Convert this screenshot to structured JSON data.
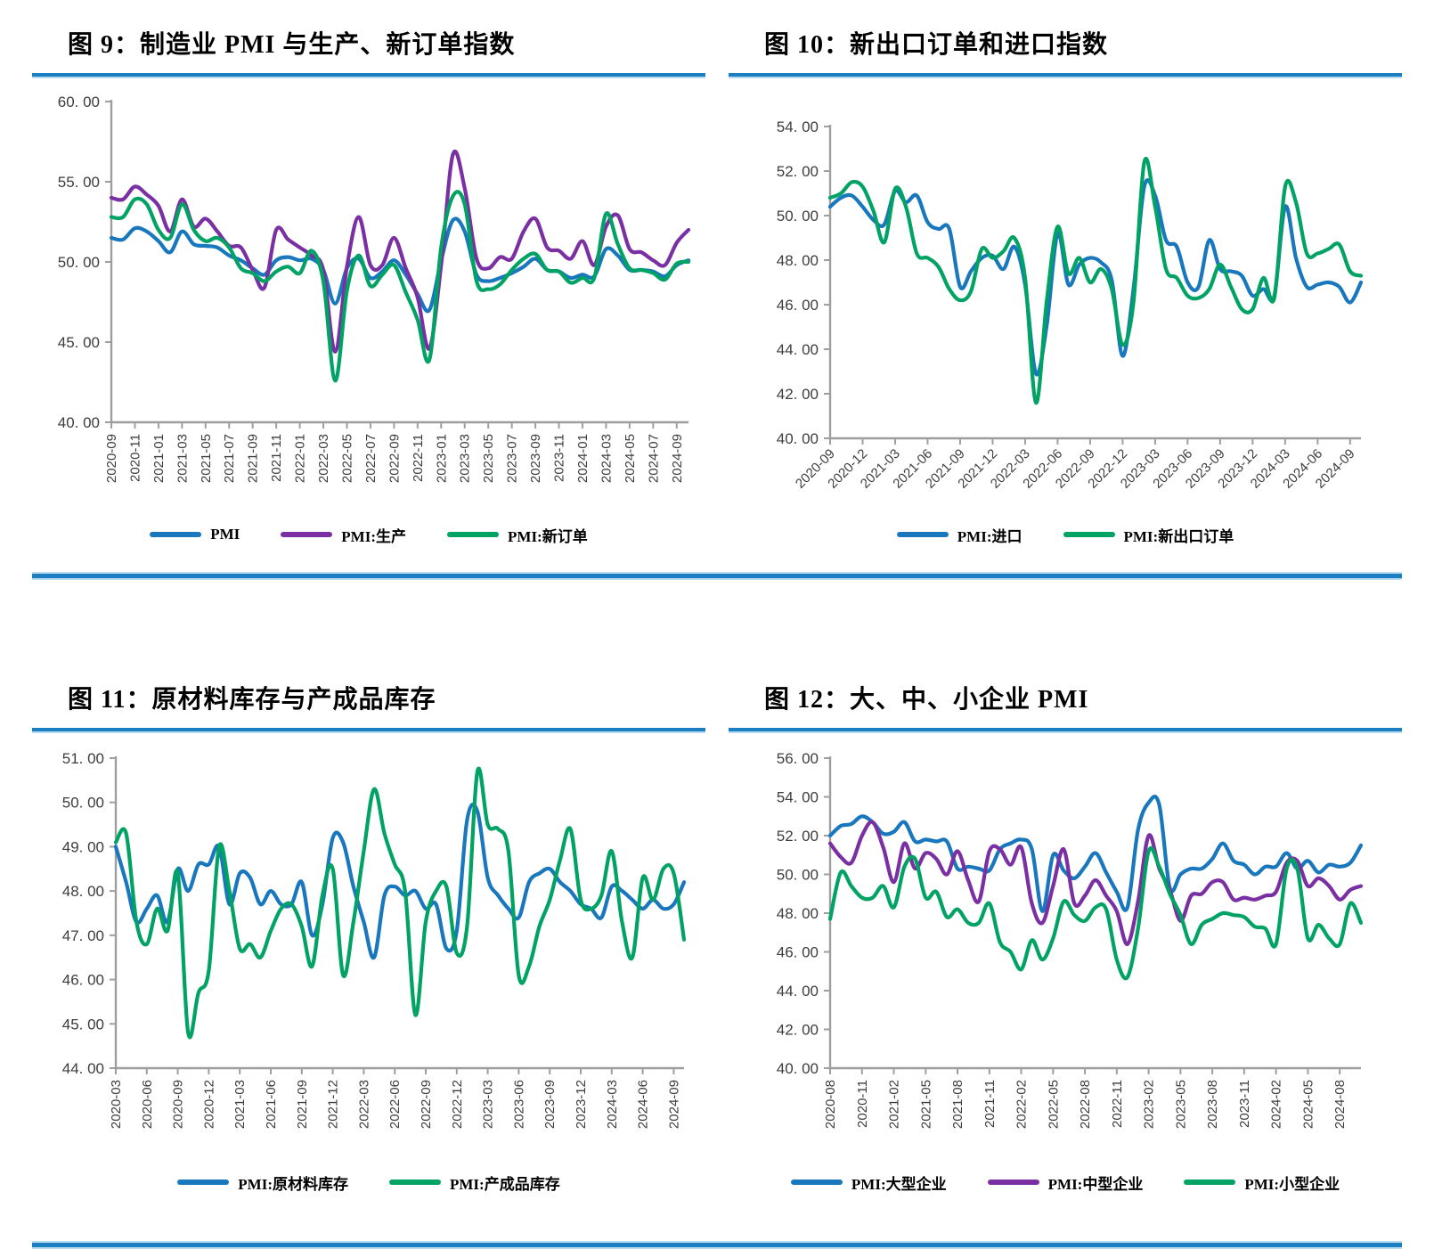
{
  "page": {
    "background": "#FFFFFF",
    "accent_rule_color": "#1B7FC2"
  },
  "chart_data": [
    {
      "id": "fig9",
      "type": "line",
      "title": "图 9：制造业 PMI 与生产、新订单指数",
      "ylim": [
        40,
        60
      ],
      "ytick_values": [
        40,
        45,
        50,
        55,
        60
      ],
      "ytick_labels": [
        "40. 00",
        "45. 00",
        "50. 00",
        "55. 00",
        "60. 00"
      ],
      "x_label_rotation": 90,
      "legend_position": "bottom",
      "grid": false,
      "x": [
        "2020-09",
        "2020-10",
        "2020-11",
        "2020-12",
        "2021-01",
        "2021-02",
        "2021-03",
        "2021-04",
        "2021-05",
        "2021-06",
        "2021-07",
        "2021-08",
        "2021-09",
        "2021-10",
        "2021-11",
        "2021-12",
        "2022-01",
        "2022-02",
        "2022-03",
        "2022-04",
        "2022-05",
        "2022-06",
        "2022-07",
        "2022-08",
        "2022-09",
        "2022-10",
        "2022-11",
        "2022-12",
        "2023-01",
        "2023-02",
        "2023-03",
        "2023-04",
        "2023-05",
        "2023-06",
        "2023-07",
        "2023-08",
        "2023-09",
        "2023-10",
        "2023-11",
        "2023-12",
        "2024-01",
        "2024-02",
        "2024-03",
        "2024-04",
        "2024-05",
        "2024-06",
        "2024-07",
        "2024-08",
        "2024-09",
        "2024-10"
      ],
      "xtick_labels": [
        "2020-09",
        "2020-11",
        "2021-01",
        "2021-03",
        "2021-05",
        "2021-07",
        "2021-09",
        "2021-11",
        "2022-01",
        "2022-03",
        "2022-05",
        "2022-07",
        "2022-09",
        "2022-11",
        "2023-01",
        "2023-03",
        "2023-05",
        "2023-07",
        "2023-09",
        "2023-11",
        "2024-01",
        "2024-03",
        "2024-05",
        "2024-07",
        "2024-09"
      ],
      "series": [
        {
          "name": "PMI",
          "color": "#1877BD",
          "values": [
            51.5,
            51.4,
            52.1,
            51.9,
            51.3,
            50.6,
            51.9,
            51.1,
            51.0,
            50.9,
            50.4,
            50.1,
            49.6,
            49.2,
            50.1,
            50.3,
            50.1,
            50.2,
            49.5,
            47.4,
            49.6,
            50.2,
            49.0,
            49.4,
            50.1,
            49.2,
            48.0,
            47.0,
            50.1,
            52.6,
            51.9,
            49.2,
            48.8,
            49.0,
            49.3,
            49.7,
            50.2,
            49.5,
            49.4,
            49.0,
            49.2,
            49.1,
            50.8,
            50.4,
            49.5,
            49.5,
            49.4,
            49.1,
            49.8,
            50.1
          ]
        },
        {
          "name": "PMI:生产",
          "color": "#7A30A2",
          "values": [
            54.0,
            53.9,
            54.7,
            54.2,
            53.5,
            51.9,
            53.9,
            52.2,
            52.7,
            51.9,
            51.0,
            50.9,
            49.5,
            48.4,
            52.0,
            51.4,
            50.9,
            50.4,
            49.5,
            44.4,
            49.7,
            52.8,
            49.8,
            49.8,
            51.5,
            49.6,
            47.8,
            44.6,
            49.8,
            56.7,
            54.6,
            50.2,
            49.6,
            50.3,
            50.2,
            51.9,
            52.7,
            50.9,
            50.7,
            50.2,
            51.3,
            49.8,
            52.2,
            52.9,
            50.8,
            50.6,
            50.1,
            49.8,
            51.2,
            52.0
          ]
        },
        {
          "name": "PMI:新订单",
          "color": "#00A364",
          "values": [
            52.8,
            52.8,
            53.9,
            53.6,
            52.0,
            51.5,
            53.6,
            52.0,
            51.3,
            51.5,
            50.9,
            49.6,
            49.3,
            48.8,
            49.4,
            49.7,
            49.3,
            50.7,
            48.8,
            42.6,
            48.2,
            50.4,
            48.5,
            49.2,
            49.8,
            48.1,
            46.4,
            43.9,
            50.9,
            54.1,
            53.6,
            48.8,
            48.3,
            48.6,
            49.5,
            50.2,
            50.5,
            49.5,
            49.4,
            48.7,
            49.0,
            49.0,
            53.0,
            51.1,
            49.6,
            49.5,
            49.3,
            48.9,
            49.9,
            50.0
          ]
        }
      ]
    },
    {
      "id": "fig10",
      "type": "line",
      "title": "图 10：新出口订单和进口指数",
      "ylim": [
        40,
        54
      ],
      "ytick_values": [
        40,
        42,
        44,
        46,
        48,
        50,
        52,
        54
      ],
      "ytick_labels": [
        "40. 00",
        "42. 00",
        "44. 00",
        "46. 00",
        "48. 00",
        "50. 00",
        "52. 00",
        "54. 00"
      ],
      "x_label_rotation": 45,
      "legend_position": "bottom",
      "grid": false,
      "x": [
        "2020-09",
        "2020-10",
        "2020-11",
        "2020-12",
        "2021-01",
        "2021-02",
        "2021-03",
        "2021-04",
        "2021-05",
        "2021-06",
        "2021-07",
        "2021-08",
        "2021-09",
        "2021-10",
        "2021-11",
        "2021-12",
        "2022-01",
        "2022-02",
        "2022-03",
        "2022-04",
        "2022-05",
        "2022-06",
        "2022-07",
        "2022-08",
        "2022-09",
        "2022-10",
        "2022-11",
        "2022-12",
        "2023-01",
        "2023-02",
        "2023-03",
        "2023-04",
        "2023-05",
        "2023-06",
        "2023-07",
        "2023-08",
        "2023-09",
        "2023-10",
        "2023-11",
        "2023-12",
        "2024-01",
        "2024-02",
        "2024-03",
        "2024-04",
        "2024-05",
        "2024-06",
        "2024-07",
        "2024-08",
        "2024-09",
        "2024-10"
      ],
      "xtick_labels": [
        "2020-09",
        "2020-12",
        "2021-03",
        "2021-06",
        "2021-09",
        "2021-12",
        "2022-03",
        "2022-06",
        "2022-09",
        "2022-12",
        "2023-03",
        "2023-06",
        "2023-09",
        "2023-12",
        "2024-03",
        "2024-06",
        "2024-09"
      ],
      "series": [
        {
          "name": "PMI:进口",
          "color": "#1877BD",
          "values": [
            50.4,
            50.8,
            50.9,
            50.4,
            49.8,
            49.6,
            51.1,
            50.6,
            50.9,
            49.7,
            49.4,
            49.4,
            46.8,
            47.5,
            48.1,
            48.2,
            47.6,
            48.6,
            46.9,
            42.9,
            45.1,
            49.2,
            46.9,
            47.8,
            48.1,
            47.9,
            47.1,
            43.7,
            46.7,
            51.3,
            50.9,
            48.9,
            48.6,
            47.0,
            46.8,
            48.9,
            47.6,
            47.5,
            47.3,
            46.4,
            46.7,
            46.4,
            50.4,
            48.1,
            46.8,
            46.9,
            47.0,
            46.8,
            46.1,
            47.0
          ]
        },
        {
          "name": "PMI:新出口订单",
          "color": "#00A364",
          "values": [
            50.8,
            51.0,
            51.5,
            51.3,
            50.2,
            48.8,
            51.2,
            50.4,
            48.3,
            48.1,
            47.7,
            46.7,
            46.2,
            46.6,
            48.5,
            48.1,
            48.4,
            49.0,
            47.2,
            41.6,
            46.2,
            49.5,
            47.4,
            48.1,
            47.0,
            47.6,
            46.7,
            44.2,
            46.1,
            52.4,
            50.4,
            47.6,
            47.2,
            46.4,
            46.3,
            46.7,
            47.8,
            46.8,
            45.8,
            45.8,
            47.2,
            46.3,
            51.3,
            50.6,
            48.3,
            48.3,
            48.5,
            48.7,
            47.5,
            47.3
          ]
        }
      ]
    },
    {
      "id": "fig11",
      "type": "line",
      "title": "图 11：原材料库存与产成品库存",
      "ylim": [
        44,
        51
      ],
      "ytick_values": [
        44,
        45,
        46,
        47,
        48,
        49,
        50,
        51
      ],
      "ytick_labels": [
        "44. 00",
        "45. 00",
        "46. 00",
        "47. 00",
        "48. 00",
        "49. 00",
        "50. 00",
        "51. 00"
      ],
      "x_label_rotation": 90,
      "legend_position": "bottom",
      "grid": false,
      "x": [
        "2020-03",
        "2020-04",
        "2020-05",
        "2020-06",
        "2020-07",
        "2020-08",
        "2020-09",
        "2020-10",
        "2020-11",
        "2020-12",
        "2021-01",
        "2021-02",
        "2021-03",
        "2021-04",
        "2021-05",
        "2021-06",
        "2021-07",
        "2021-08",
        "2021-09",
        "2021-10",
        "2021-11",
        "2021-12",
        "2022-01",
        "2022-02",
        "2022-03",
        "2022-04",
        "2022-05",
        "2022-06",
        "2022-07",
        "2022-08",
        "2022-09",
        "2022-10",
        "2022-11",
        "2022-12",
        "2023-01",
        "2023-02",
        "2023-03",
        "2023-04",
        "2023-05",
        "2023-06",
        "2023-07",
        "2023-08",
        "2023-09",
        "2023-10",
        "2023-11",
        "2023-12",
        "2024-01",
        "2024-02",
        "2024-03",
        "2024-04",
        "2024-05",
        "2024-06",
        "2024-07",
        "2024-08",
        "2024-09",
        "2024-10"
      ],
      "xtick_labels": [
        "2020-03",
        "2020-06",
        "2020-09",
        "2020-12",
        "2021-03",
        "2021-06",
        "2021-09",
        "2021-12",
        "2022-03",
        "2022-06",
        "2022-09",
        "2022-12",
        "2023-03",
        "2023-06",
        "2023-09",
        "2023-12",
        "2024-03",
        "2024-06",
        "2024-09"
      ],
      "series": [
        {
          "name": "PMI:原材料库存",
          "color": "#1877BD",
          "values": [
            49.0,
            48.2,
            47.3,
            47.6,
            47.9,
            47.3,
            48.5,
            48.0,
            48.6,
            48.6,
            49.0,
            47.7,
            48.4,
            48.3,
            47.7,
            48.0,
            47.7,
            47.7,
            48.2,
            47.0,
            47.7,
            49.2,
            49.1,
            48.1,
            47.3,
            46.5,
            47.9,
            48.1,
            47.9,
            48.0,
            47.6,
            47.7,
            46.7,
            47.1,
            49.6,
            49.8,
            48.3,
            47.9,
            47.6,
            47.4,
            48.2,
            48.4,
            48.5,
            48.2,
            48.0,
            47.7,
            47.6,
            47.4,
            48.1,
            48.0,
            47.8,
            47.6,
            47.8,
            47.6,
            47.7,
            48.2
          ]
        },
        {
          "name": "PMI:产成品库存",
          "color": "#00A364",
          "values": [
            49.1,
            49.3,
            47.3,
            46.8,
            47.6,
            47.1,
            48.4,
            44.8,
            45.7,
            46.2,
            49.0,
            48.0,
            46.7,
            46.8,
            46.5,
            47.1,
            47.6,
            47.7,
            47.2,
            46.3,
            47.9,
            48.5,
            46.1,
            47.3,
            48.9,
            50.3,
            49.3,
            48.6,
            48.0,
            45.2,
            47.3,
            48.0,
            48.1,
            46.6,
            47.2,
            50.7,
            49.5,
            49.4,
            48.9,
            46.1,
            46.3,
            47.2,
            47.8,
            48.7,
            49.4,
            47.8,
            47.6,
            47.9,
            48.9,
            47.3,
            46.5,
            48.3,
            47.8,
            48.5,
            48.4,
            46.9
          ]
        }
      ]
    },
    {
      "id": "fig12",
      "type": "line",
      "title": "图 12：大、中、小企业 PMI",
      "ylim": [
        40,
        56
      ],
      "ytick_values": [
        40,
        42,
        44,
        46,
        48,
        50,
        52,
        54,
        56
      ],
      "ytick_labels": [
        "40. 00",
        "42. 00",
        "44. 00",
        "46. 00",
        "48. 00",
        "50. 00",
        "52. 00",
        "54. 00",
        "56. 00"
      ],
      "x_label_rotation": 90,
      "legend_position": "bottom",
      "grid": false,
      "x": [
        "2020-08",
        "2020-09",
        "2020-10",
        "2020-11",
        "2020-12",
        "2021-01",
        "2021-02",
        "2021-03",
        "2021-04",
        "2021-05",
        "2021-06",
        "2021-07",
        "2021-08",
        "2021-09",
        "2021-10",
        "2021-11",
        "2021-12",
        "2022-01",
        "2022-02",
        "2022-03",
        "2022-04",
        "2022-05",
        "2022-06",
        "2022-07",
        "2022-08",
        "2022-09",
        "2022-10",
        "2022-11",
        "2022-12",
        "2023-01",
        "2023-02",
        "2023-03",
        "2023-04",
        "2023-05",
        "2023-06",
        "2023-07",
        "2023-08",
        "2023-09",
        "2023-10",
        "2023-11",
        "2023-12",
        "2024-01",
        "2024-02",
        "2024-03",
        "2024-04",
        "2024-05",
        "2024-06",
        "2024-07",
        "2024-08",
        "2024-09",
        "2024-10"
      ],
      "xtick_labels": [
        "2020-08",
        "2020-11",
        "2021-02",
        "2021-05",
        "2021-08",
        "2021-11",
        "2022-02",
        "2022-05",
        "2022-08",
        "2022-11",
        "2023-02",
        "2023-05",
        "2023-08",
        "2023-11",
        "2024-02",
        "2024-05",
        "2024-08"
      ],
      "series": [
        {
          "name": "PMI:大型企业",
          "color": "#1877BD",
          "values": [
            52.0,
            52.5,
            52.6,
            53.0,
            52.7,
            52.1,
            52.2,
            52.7,
            51.7,
            51.8,
            51.7,
            51.7,
            50.3,
            50.4,
            50.3,
            50.2,
            51.3,
            51.6,
            51.8,
            51.3,
            48.1,
            51.0,
            50.2,
            49.8,
            50.4,
            51.1,
            50.1,
            49.1,
            48.3,
            52.3,
            53.7,
            53.6,
            49.3,
            50.0,
            50.3,
            50.3,
            50.8,
            51.6,
            50.7,
            50.5,
            50.0,
            50.4,
            50.4,
            51.1,
            50.3,
            50.7,
            50.1,
            50.5,
            50.4,
            50.6,
            51.5
          ]
        },
        {
          "name": "PMI:中型企业",
          "color": "#7A30A2",
          "values": [
            51.6,
            50.9,
            50.6,
            52.0,
            52.7,
            51.4,
            49.6,
            51.6,
            50.3,
            51.1,
            50.8,
            50.0,
            51.2,
            49.7,
            48.6,
            51.2,
            51.3,
            50.5,
            51.4,
            48.5,
            47.5,
            49.4,
            51.3,
            48.5,
            48.9,
            49.7,
            48.9,
            48.1,
            46.4,
            48.6,
            52.0,
            50.3,
            49.2,
            47.6,
            48.9,
            49.0,
            49.6,
            49.6,
            48.7,
            48.8,
            48.7,
            48.9,
            49.1,
            50.6,
            50.7,
            49.4,
            49.8,
            49.4,
            48.7,
            49.2,
            49.4
          ]
        },
        {
          "name": "PMI:小型企业",
          "color": "#00A364",
          "values": [
            47.7,
            50.1,
            49.4,
            48.8,
            48.8,
            49.4,
            48.3,
            50.4,
            50.8,
            48.8,
            49.1,
            47.8,
            48.2,
            47.5,
            47.5,
            48.5,
            46.5,
            46.0,
            45.1,
            46.6,
            45.6,
            46.7,
            48.6,
            47.9,
            47.6,
            48.3,
            48.2,
            45.6,
            44.7,
            47.2,
            51.2,
            50.4,
            49.0,
            47.9,
            46.4,
            47.4,
            47.7,
            48.0,
            47.9,
            47.8,
            47.3,
            47.2,
            46.4,
            50.3,
            50.3,
            46.7,
            47.4,
            46.7,
            46.4,
            48.5,
            47.5
          ]
        }
      ]
    }
  ]
}
